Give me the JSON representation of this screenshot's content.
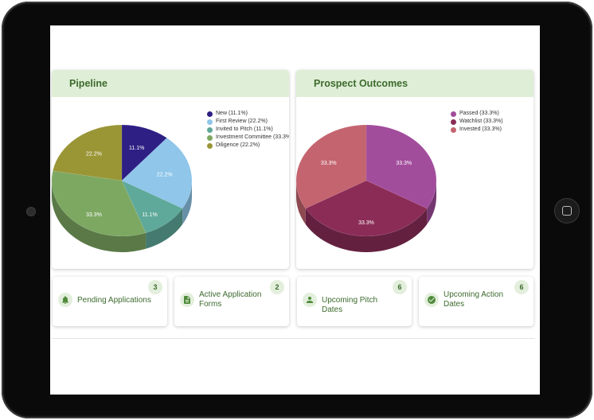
{
  "pipeline": {
    "title": "Pipeline",
    "chart_data": {
      "type": "pie",
      "slices": [
        {
          "label": "New (11.1%)",
          "value": 11.1,
          "text": "11.1%",
          "color": "#2e1f84"
        },
        {
          "label": "First Review (22.2%)",
          "value": 22.2,
          "text": "22.2%",
          "color": "#8fc6ea"
        },
        {
          "label": "Invited to Pitch (11.1%)",
          "value": 11.1,
          "text": "11.1%",
          "color": "#5fa99a"
        },
        {
          "label": "Investment Committee (33.3%)",
          "value": 33.3,
          "text": "33.3%",
          "color": "#7da862"
        },
        {
          "label": "Diligence (22.2%)",
          "value": 22.2,
          "text": "22.2%",
          "color": "#9a9636"
        }
      ]
    }
  },
  "outcomes": {
    "title": "Prospect Outcomes",
    "chart_data": {
      "type": "pie",
      "slices": [
        {
          "label": "Passed (33.3%)",
          "value": 33.3,
          "text": "33.3%",
          "color": "#a24d9c"
        },
        {
          "label": "Watchlist (33.3%)",
          "value": 33.3,
          "text": "33.3%",
          "color": "#8b2c57"
        },
        {
          "label": "Invested (33.3%)",
          "value": 33.3,
          "text": "33.3%",
          "color": "#c4646f"
        }
      ]
    }
  },
  "stats": [
    {
      "label": "Pending Applications",
      "count": "3",
      "icon": "bell-icon"
    },
    {
      "label": "Active Application Forms",
      "count": "2",
      "icon": "document-icon"
    },
    {
      "label": "Upcoming Pitch Dates",
      "count": "6",
      "icon": "person-icon"
    },
    {
      "label": "Upcoming Action Dates",
      "count": "6",
      "icon": "check-circle-icon"
    }
  ]
}
